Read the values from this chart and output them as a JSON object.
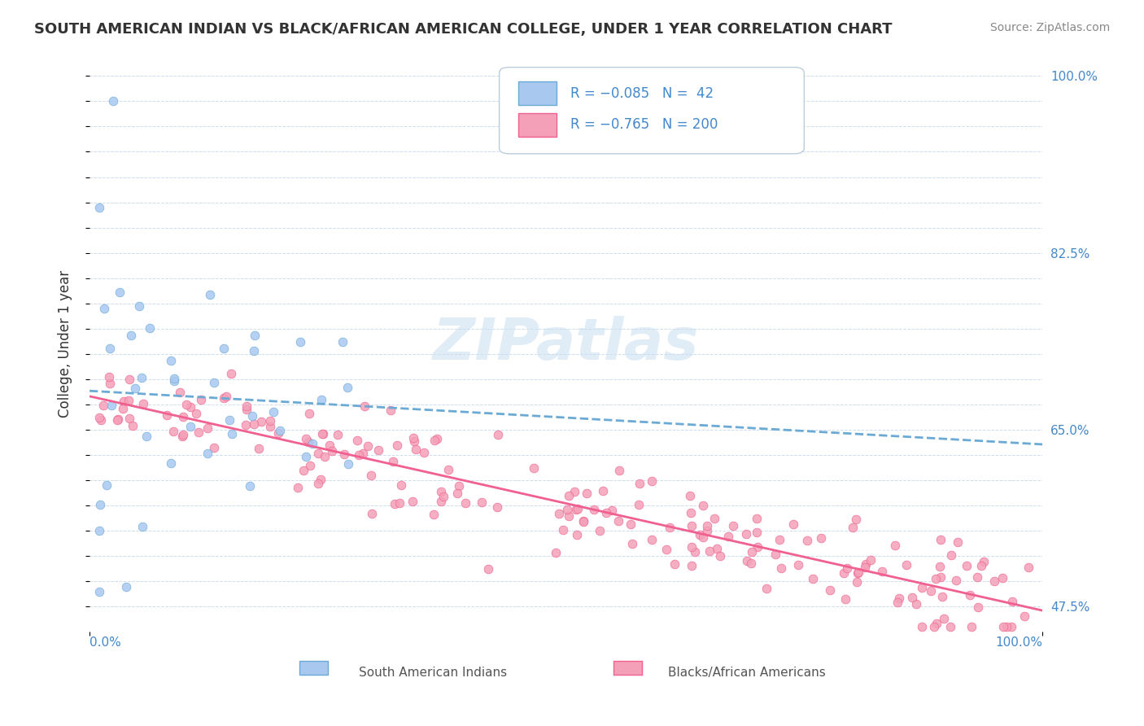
{
  "title": "SOUTH AMERICAN INDIAN VS BLACK/AFRICAN AMERICAN COLLEGE, UNDER 1 YEAR CORRELATION CHART",
  "source": "Source: ZipAtlas.com",
  "ylabel": "College, Under 1 year",
  "watermark": "ZIPatlas",
  "color_sai": "#a8c8f0",
  "color_baa": "#f4a0b8",
  "color_sai_line": "#6aaad4",
  "color_baa_line": "#f06090",
  "color_blue_text": "#4488cc",
  "ytick_positions": [
    0.475,
    0.5,
    0.525,
    0.55,
    0.575,
    0.6,
    0.625,
    0.65,
    0.675,
    0.7,
    0.725,
    0.75,
    0.775,
    0.8,
    0.825,
    0.85,
    0.875,
    0.9,
    0.925,
    0.95,
    0.975,
    1.0
  ],
  "ytick_labels_right": [
    "47.5%",
    "",
    "",
    "",
    "",
    "",
    "",
    "65.0%",
    "",
    "",
    "",
    "",
    "",
    "",
    "82.5%",
    "",
    "",
    "",
    "",
    "",
    "",
    "100.0%"
  ],
  "xlim": [
    0.0,
    1.0
  ],
  "ylim": [
    0.45,
    1.02
  ]
}
